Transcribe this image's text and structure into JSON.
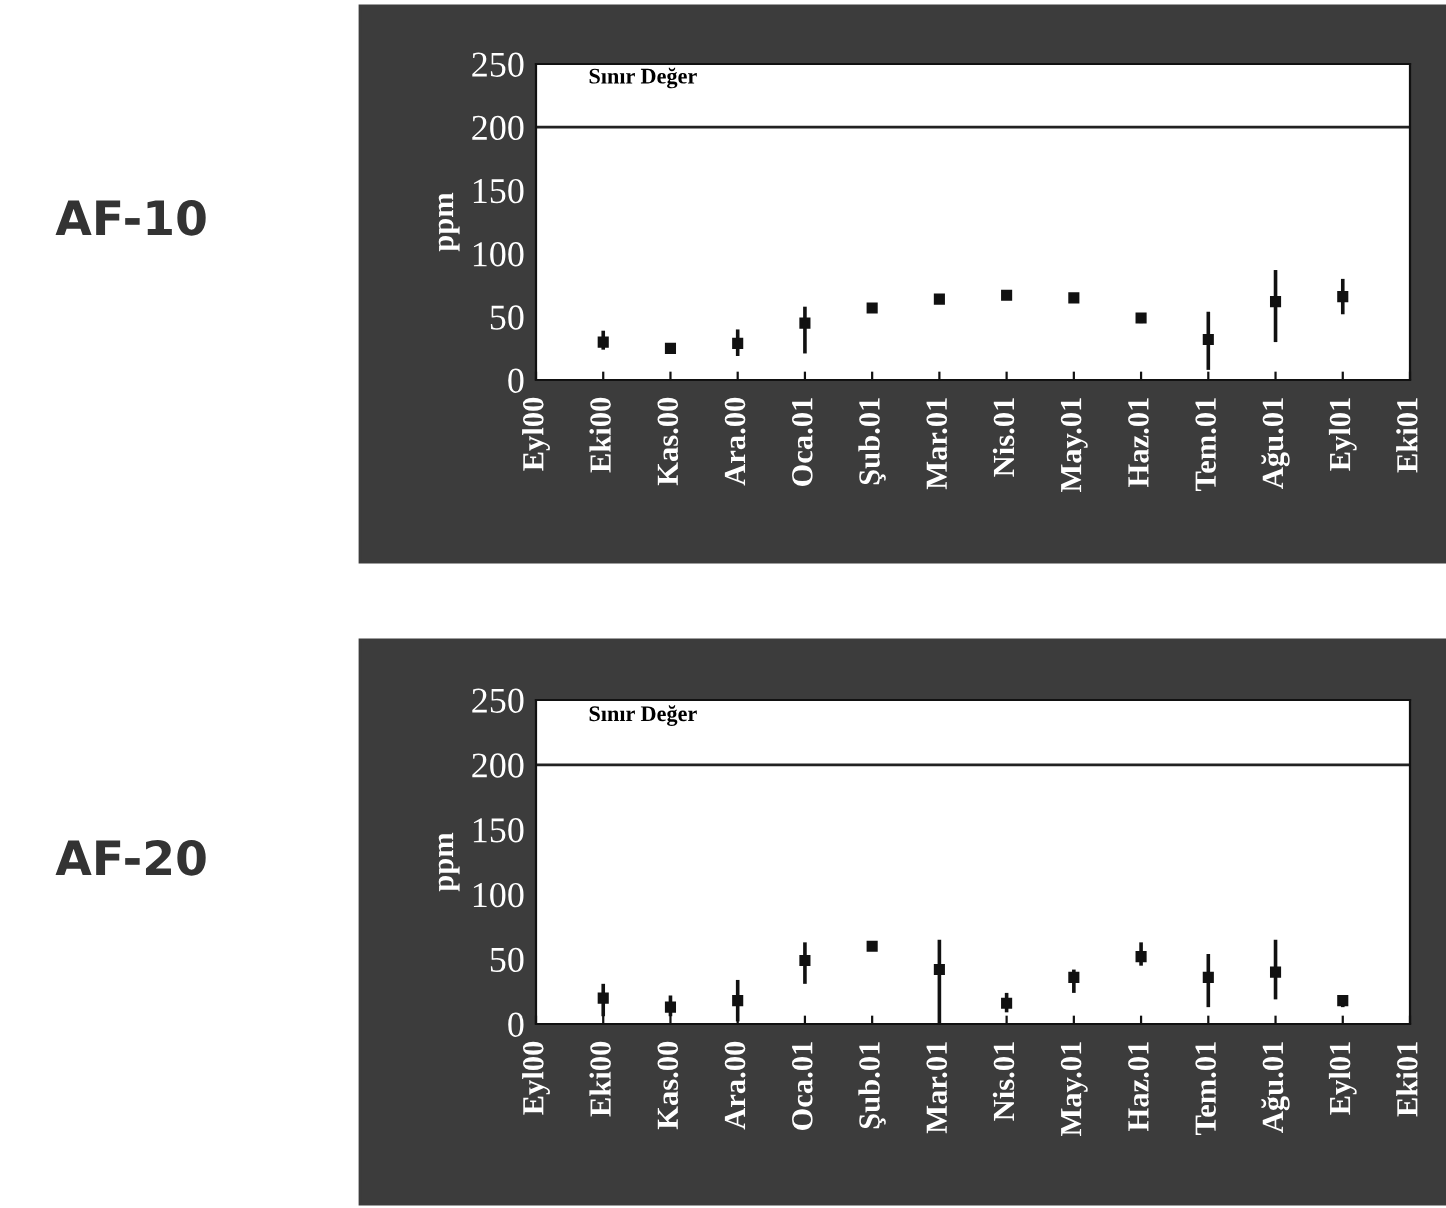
{
  "chart_data": [
    {
      "type": "scatter",
      "title": "AF-10",
      "ylabel": "ppm",
      "categories": [
        "Eyl00",
        "Eki00",
        "Kas.00",
        "Ara.00",
        "Oca.01",
        "Şub.01",
        "Mar.01",
        "Nis.01",
        "May.01",
        "Haz.01",
        "Tem.01",
        "Ağu.01",
        "Eyl01",
        "Eki01"
      ],
      "values": [
        null,
        30,
        25,
        29,
        45,
        57,
        64,
        67,
        65,
        49,
        32,
        62,
        66,
        null
      ],
      "errors": [
        null,
        [
          24,
          39
        ],
        [
          22,
          28
        ],
        [
          19,
          40
        ],
        [
          21,
          58
        ],
        [
          55,
          60
        ],
        [
          62,
          66
        ],
        [
          65,
          70
        ],
        [
          62,
          68
        ],
        [
          45,
          53
        ],
        [
          8,
          54
        ],
        [
          30,
          87
        ],
        [
          52,
          80
        ],
        null
      ],
      "color": "#111111",
      "marker": "square",
      "ylim": [
        0,
        250
      ],
      "yticks": [
        0,
        50,
        100,
        150,
        200,
        250
      ],
      "ref_lines": [
        {
          "axis": "y",
          "value": 200,
          "label": "Sınır Değer",
          "color": "#222222"
        }
      ],
      "grid": false,
      "legend": false
    },
    {
      "type": "scatter",
      "title": "AF-20",
      "ylabel": "ppm",
      "categories": [
        "Eyl00",
        "Eki00",
        "Kas.00",
        "Ara.00",
        "Oca.01",
        "Şub.01",
        "Mar.01",
        "Nis.01",
        "May.01",
        "Haz.01",
        "Tem.01",
        "Ağu.01",
        "Eyl01",
        "Eki01"
      ],
      "values": [
        null,
        20,
        13,
        18,
        49,
        60,
        42,
        16,
        36,
        52,
        36,
        40,
        18,
        null
      ],
      "errors": [
        null,
        [
          6,
          31
        ],
        [
          6,
          22
        ],
        [
          2,
          34
        ],
        [
          31,
          63
        ],
        [
          57,
          62
        ],
        [
          0,
          65
        ],
        [
          9,
          24
        ],
        [
          24,
          42
        ],
        [
          45,
          63
        ],
        [
          13,
          54
        ],
        [
          19,
          65
        ],
        [
          13,
          22
        ],
        null
      ],
      "color": "#111111",
      "marker": "square",
      "ylim": [
        0,
        250
      ],
      "yticks": [
        0,
        50,
        100,
        150,
        200,
        250
      ],
      "ref_lines": [
        {
          "axis": "y",
          "value": 200,
          "label": "Sınır Değer",
          "color": "#222222"
        }
      ],
      "grid": false,
      "legend": false
    }
  ]
}
